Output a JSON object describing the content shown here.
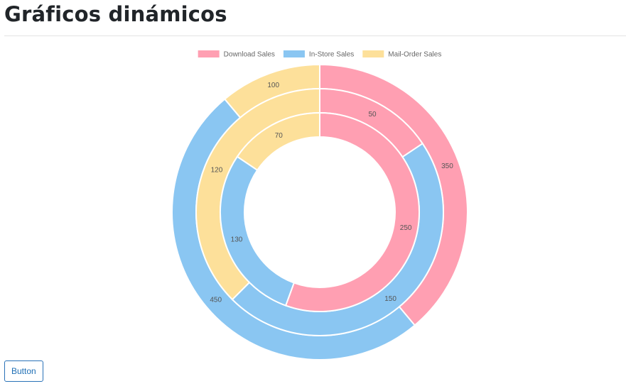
{
  "page": {
    "title": "Gráficos dinámicos",
    "button_label": "Button"
  },
  "chart_data": {
    "type": "doughnut",
    "categories": [
      "Download Sales",
      "In-Store Sales",
      "Mail-Order Sales"
    ],
    "colors": [
      "#ff9fb2",
      "#8ac6f2",
      "#fde09a"
    ],
    "legend_position": "top-center",
    "series": [
      {
        "values": [
          350,
          450,
          100
        ]
      },
      {
        "values": [
          50,
          150,
          120
        ]
      },
      {
        "values": [
          250,
          130,
          70
        ]
      }
    ]
  }
}
